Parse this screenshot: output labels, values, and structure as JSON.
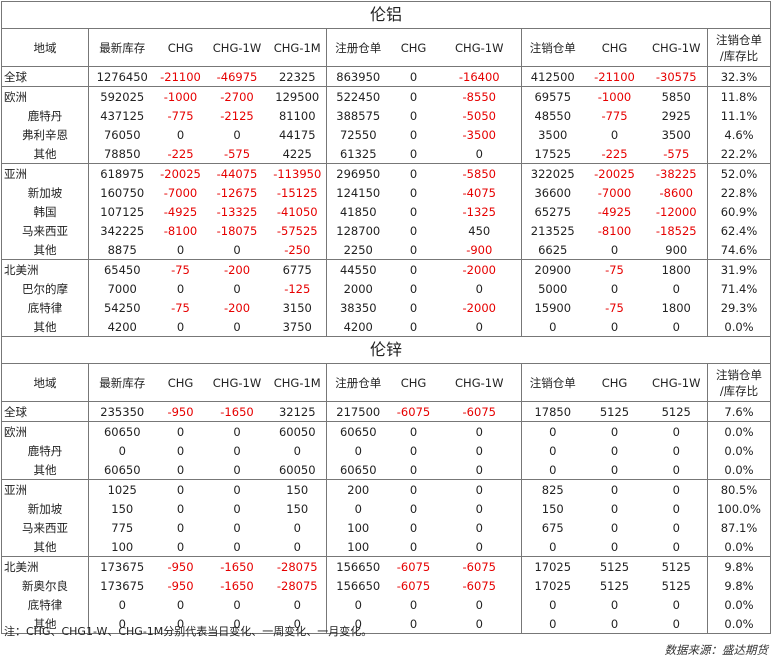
{
  "columns": [
    "地域",
    "最新库存",
    "CHG",
    "CHG-1W",
    "CHG-1M",
    "注册仓单",
    "CHG",
    "CHG-1W",
    "注销仓单",
    "CHG",
    "CHG-1W",
    "注销仓单/库存比"
  ],
  "sections": [
    {
      "title": "伦铝",
      "header_last": [
        "注销仓单",
        "/库存比"
      ],
      "groups": [
        [
          [
            "全球",
            "1276450",
            "-21100",
            "-46975",
            "22325",
            "863950",
            "0",
            "-16400",
            "412500",
            "-21100",
            "-30575",
            "32.3%"
          ]
        ],
        [
          [
            "欧洲",
            "592025",
            "-1000",
            "-2700",
            "129500",
            "522450",
            "0",
            "-8550",
            "69575",
            "-1000",
            "5850",
            "11.8%"
          ],
          [
            "鹿特丹",
            "437125",
            "-775",
            "-2125",
            "81100",
            "388575",
            "0",
            "-5050",
            "48550",
            "-775",
            "2925",
            "11.1%"
          ],
          [
            "弗利辛恩",
            "76050",
            "0",
            "0",
            "44175",
            "72550",
            "0",
            "-3500",
            "3500",
            "0",
            "3500",
            "4.6%"
          ],
          [
            "其他",
            "78850",
            "-225",
            "-575",
            "4225",
            "61325",
            "0",
            "0",
            "17525",
            "-225",
            "-575",
            "22.2%"
          ]
        ],
        [
          [
            "亚洲",
            "618975",
            "-20025",
            "-44075",
            "-113950",
            "296950",
            "0",
            "-5850",
            "322025",
            "-20025",
            "-38225",
            "52.0%"
          ],
          [
            "新加坡",
            "160750",
            "-7000",
            "-12675",
            "-15125",
            "124150",
            "0",
            "-4075",
            "36600",
            "-7000",
            "-8600",
            "22.8%"
          ],
          [
            "韩国",
            "107125",
            "-4925",
            "-13325",
            "-41050",
            "41850",
            "0",
            "-1325",
            "65275",
            "-4925",
            "-12000",
            "60.9%"
          ],
          [
            "马来西亚",
            "342225",
            "-8100",
            "-18075",
            "-57525",
            "128700",
            "0",
            "450",
            "213525",
            "-8100",
            "-18525",
            "62.4%"
          ],
          [
            "其他",
            "8875",
            "0",
            "0",
            "-250",
            "2250",
            "0",
            "-900",
            "6625",
            "0",
            "900",
            "74.6%"
          ]
        ],
        [
          [
            "北美洲",
            "65450",
            "-75",
            "-200",
            "6775",
            "44550",
            "0",
            "-2000",
            "20900",
            "-75",
            "1800",
            "31.9%"
          ],
          [
            "巴尔的摩",
            "7000",
            "0",
            "0",
            "-125",
            "2000",
            "0",
            "0",
            "5000",
            "0",
            "0",
            "71.4%"
          ],
          [
            "底特律",
            "54250",
            "-75",
            "-200",
            "3150",
            "38350",
            "0",
            "-2000",
            "15900",
            "-75",
            "1800",
            "29.3%"
          ],
          [
            "其他",
            "4200",
            "0",
            "0",
            "3750",
            "4200",
            "0",
            "0",
            "0",
            "0",
            "0",
            "0.0%"
          ]
        ]
      ]
    },
    {
      "title": "伦锌",
      "header_last": [
        "注销仓单",
        "/库存比"
      ],
      "groups": [
        [
          [
            "全球",
            "235350",
            "-950",
            "-1650",
            "32125",
            "217500",
            "-6075",
            "-6075",
            "17850",
            "5125",
            "5125",
            "7.6%"
          ]
        ],
        [
          [
            "欧洲",
            "60650",
            "0",
            "0",
            "60050",
            "60650",
            "0",
            "0",
            "0",
            "0",
            "0",
            "0.0%"
          ],
          [
            "鹿特丹",
            "0",
            "0",
            "0",
            "0",
            "0",
            "0",
            "0",
            "0",
            "0",
            "0",
            "0.0%"
          ],
          [
            "其他",
            "60650",
            "0",
            "0",
            "60050",
            "60650",
            "0",
            "0",
            "0",
            "0",
            "0",
            "0.0%"
          ]
        ],
        [
          [
            "亚洲",
            "1025",
            "0",
            "0",
            "150",
            "200",
            "0",
            "0",
            "825",
            "0",
            "0",
            "80.5%"
          ],
          [
            "新加坡",
            "150",
            "0",
            "0",
            "150",
            "0",
            "0",
            "0",
            "150",
            "0",
            "0",
            "100.0%"
          ],
          [
            "马来西亚",
            "775",
            "0",
            "0",
            "0",
            "100",
            "0",
            "0",
            "675",
            "0",
            "0",
            "87.1%"
          ],
          [
            "其他",
            "100",
            "0",
            "0",
            "0",
            "100",
            "0",
            "0",
            "0",
            "0",
            "0",
            "0.0%"
          ]
        ],
        [
          [
            "北美洲",
            "173675",
            "-950",
            "-1650",
            "-28075",
            "156650",
            "-6075",
            "-6075",
            "17025",
            "5125",
            "5125",
            "9.8%"
          ],
          [
            "新奥尔良",
            "173675",
            "-950",
            "-1650",
            "-28075",
            "156650",
            "-6075",
            "-6075",
            "17025",
            "5125",
            "5125",
            "9.8%"
          ],
          [
            "底特律",
            "0",
            "0",
            "0",
            "0",
            "0",
            "0",
            "0",
            "0",
            "0",
            "0",
            "0.0%"
          ],
          [
            "其他",
            "0",
            "0",
            "0",
            "0",
            "0",
            "0",
            "0",
            "0",
            "0",
            "0",
            "0.0%"
          ]
        ]
      ]
    }
  ],
  "note": "注：CHG、CHG1-W、CHG-1M分别代表当日变化、一周变化、一月变化。",
  "source": "数据来源：盛达期货",
  "colors": {
    "negative": "#e60000",
    "text": "#222222",
    "border": "#777777"
  }
}
